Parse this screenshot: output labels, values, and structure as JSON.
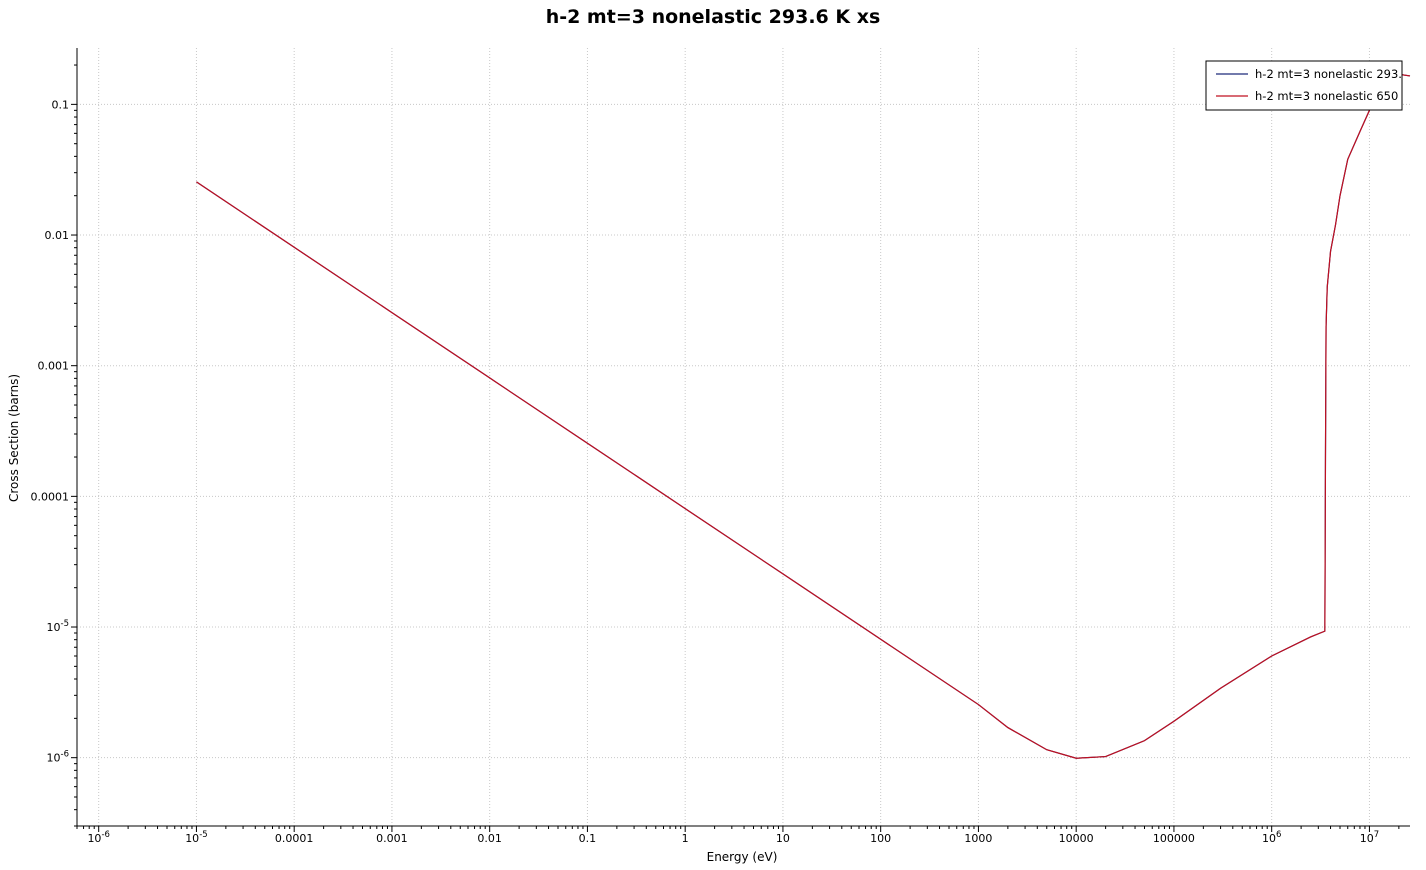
{
  "chart_data": {
    "type": "line",
    "title": "h-2 mt=3 nonelastic 293.6 K xs",
    "xlabel": "Energy (eV)",
    "ylabel": "Cross Section (barns)",
    "xscale": "log",
    "yscale": "log",
    "xlim": [
      6e-07,
      26000000.0
    ],
    "ylim": [
      3e-07,
      0.27
    ],
    "grid": true,
    "legend_position": "top-right",
    "x_ticks": [
      {
        "value": 1e-06,
        "base": "10",
        "exp": "-6"
      },
      {
        "value": 1e-05,
        "base": "10",
        "exp": "-5"
      },
      {
        "value": 0.0001,
        "label": "0.0001"
      },
      {
        "value": 0.001,
        "label": "0.001"
      },
      {
        "value": 0.01,
        "label": "0.01"
      },
      {
        "value": 0.1,
        "label": "0.1"
      },
      {
        "value": 1,
        "label": "1"
      },
      {
        "value": 10,
        "label": "10"
      },
      {
        "value": 100,
        "label": "100"
      },
      {
        "value": 1000,
        "label": "1000"
      },
      {
        "value": 10000,
        "label": "10000"
      },
      {
        "value": 100000,
        "label": "100000"
      },
      {
        "value": 1000000.0,
        "base": "10",
        "exp": "6"
      },
      {
        "value": 10000000.0,
        "base": "10",
        "exp": "7"
      }
    ],
    "y_ticks": [
      {
        "value": 1e-06,
        "base": "10",
        "exp": "-6"
      },
      {
        "value": 1e-05,
        "base": "10",
        "exp": "-5"
      },
      {
        "value": 0.0001,
        "label": "0.0001"
      },
      {
        "value": 0.001,
        "label": "0.001"
      },
      {
        "value": 0.01,
        "label": "0.01"
      },
      {
        "value": 0.1,
        "label": "0.1"
      }
    ],
    "series": [
      {
        "name": "h-2 mt=3 nonelastic 293.",
        "color": "#1f2a7a",
        "x": [
          1e-05,
          0.0001,
          0.001,
          0.01,
          0.1,
          1,
          10,
          100,
          1000,
          2000,
          5000,
          10000,
          20000,
          50000,
          100000,
          300000,
          1000000,
          2500000,
          3500000,
          3550000,
          3600000,
          3700000,
          4000000,
          4500000,
          5000000,
          6000000,
          8000000,
          10000000,
          15000000,
          20000000,
          26000000
        ],
        "y": [
          0.0255,
          0.00806,
          0.00255,
          0.000806,
          0.000255,
          8.06e-05,
          2.55e-05,
          8.06e-06,
          2.55e-06,
          1.7e-06,
          1.15e-06,
          9.9e-07,
          1.02e-06,
          1.35e-06,
          1.9e-06,
          3.4e-06,
          6e-06,
          8.4e-06,
          9.3e-06,
          0.0002,
          0.002,
          0.004,
          0.0075,
          0.012,
          0.02,
          0.038,
          0.062,
          0.09,
          0.145,
          0.17,
          0.165
        ]
      },
      {
        "name": "h-2 mt=3 nonelastic 650",
        "color": "#c01020",
        "x": [
          1e-05,
          0.0001,
          0.001,
          0.01,
          0.1,
          1,
          10,
          100,
          1000,
          2000,
          5000,
          10000,
          20000,
          50000,
          100000,
          300000,
          1000000,
          2500000,
          3500000,
          3550000,
          3600000,
          3700000,
          4000000,
          4500000,
          5000000,
          6000000,
          8000000,
          10000000,
          15000000,
          20000000,
          26000000
        ],
        "y": [
          0.0255,
          0.00806,
          0.00255,
          0.000806,
          0.000255,
          8.06e-05,
          2.55e-05,
          8.06e-06,
          2.55e-06,
          1.7e-06,
          1.15e-06,
          9.9e-07,
          1.02e-06,
          1.35e-06,
          1.9e-06,
          3.4e-06,
          6e-06,
          8.4e-06,
          9.3e-06,
          0.0002,
          0.002,
          0.004,
          0.0075,
          0.012,
          0.02,
          0.038,
          0.062,
          0.09,
          0.145,
          0.17,
          0.165
        ]
      }
    ]
  }
}
